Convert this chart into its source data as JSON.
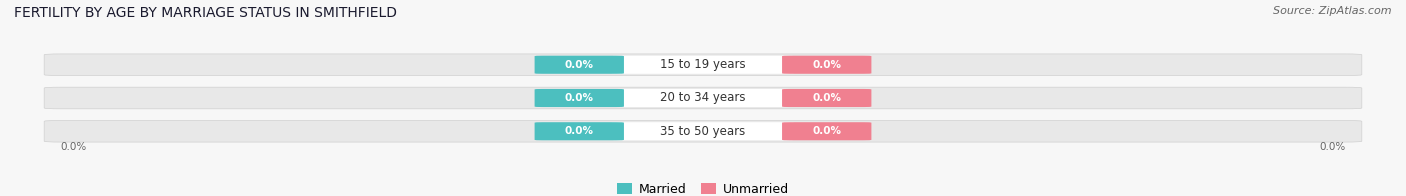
{
  "title": "FERTILITY BY AGE BY MARRIAGE STATUS IN SMITHFIELD",
  "source": "Source: ZipAtlas.com",
  "categories": [
    "15 to 19 years",
    "20 to 34 years",
    "35 to 50 years"
  ],
  "married_values": [
    0.0,
    0.0,
    0.0
  ],
  "unmarried_values": [
    0.0,
    0.0,
    0.0
  ],
  "married_color": "#4cbfbf",
  "unmarried_color": "#f08090",
  "bar_bg_color": "#e8e8e8",
  "bar_bg_color2": "#f0f0f0",
  "bar_height": 0.6,
  "xlim_left": -1.05,
  "xlim_right": 1.05,
  "title_fontsize": 10,
  "source_fontsize": 8,
  "value_fontsize": 7.5,
  "cat_fontsize": 8.5,
  "legend_fontsize": 9,
  "legend_married": "Married",
  "legend_unmarried": "Unmarried",
  "bg_color": "#f7f7f7",
  "axis_label_color": "#666666",
  "cat_label_color": "#333333",
  "value_label_color": "#ffffff",
  "bottom_label": "0.0%",
  "right_label": "0.0%"
}
